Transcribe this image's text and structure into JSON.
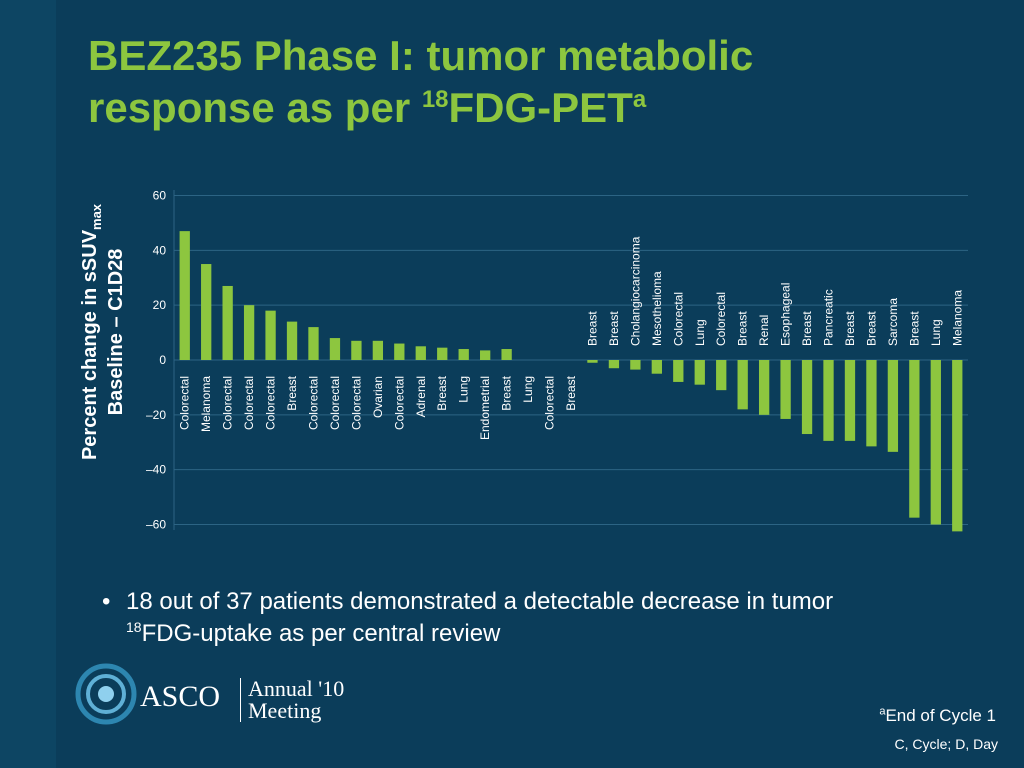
{
  "slide": {
    "title_line1": "BEZ235 Phase I: tumor metabolic",
    "title_line2_prefix": "response as per ",
    "title_sup": "18",
    "title_main": "FDG-PET",
    "title_note": "a"
  },
  "bullet": {
    "dot": "•",
    "text_part1": "18 out of 37 patients demonstrated a detectable decrease in tumor",
    "sup": "18",
    "text_part2": "FDG-uptake as per central review"
  },
  "footnotes": {
    "a_marker": "a",
    "a_text": "End of Cycle 1",
    "abbrev": "C, Cycle; D, Day"
  },
  "logo": {
    "asco": "ASCO",
    "annual": "Annual '10",
    "meeting": "Meeting"
  },
  "colors": {
    "background": "#0b3d5a",
    "bar": "#8dc63f",
    "title": "#8dc63f",
    "text": "#ffffff"
  },
  "chart_data": {
    "type": "bar",
    "title": "",
    "ylabel_line1": "Percent change in sSUV",
    "ylabel_sub": "max",
    "ylabel_line2": "Baseline – C1D28",
    "xlabel": "",
    "ylim": [
      -62,
      62
    ],
    "yticks": [
      60,
      40,
      20,
      0,
      -20,
      -40,
      -60
    ],
    "ytick_labels": [
      "60",
      "40",
      "20",
      "0",
      "–20",
      "–40",
      "–60"
    ],
    "grid": true,
    "categories": [
      "Colorectal",
      "Melanoma",
      "Colorectal",
      "Colorectal",
      "Colorectal",
      "Breast",
      "Colorectal",
      "Colorectal",
      "Colorectal",
      "Ovarian",
      "Colorectal",
      "Adrenal",
      "Breast",
      "Lung",
      "Endometrial",
      "Breast",
      "Lung",
      "Colorectal",
      "Breast",
      "Breast",
      "Breast",
      "Cholangiocarcinoma",
      "Mesothelioma",
      "Colorectal",
      "Lung",
      "Colorectal",
      "Breast",
      "Renal",
      "Esophageal",
      "Breast",
      "Pancreatic",
      "Breast",
      "Breast",
      "Sarcoma",
      "Breast",
      "Lung",
      "Melanoma"
    ],
    "values": [
      47,
      35,
      27,
      20,
      18,
      14,
      12,
      8,
      7,
      7,
      6,
      5,
      4.5,
      4,
      3.5,
      4,
      0,
      0,
      0,
      -1,
      -3,
      -3.5,
      -5,
      -8,
      -9,
      -11,
      -18,
      -20,
      -21.5,
      -27,
      -29.5,
      -29.5,
      -31.5,
      -33.5,
      -57.5,
      -60,
      -62.5
    ]
  }
}
